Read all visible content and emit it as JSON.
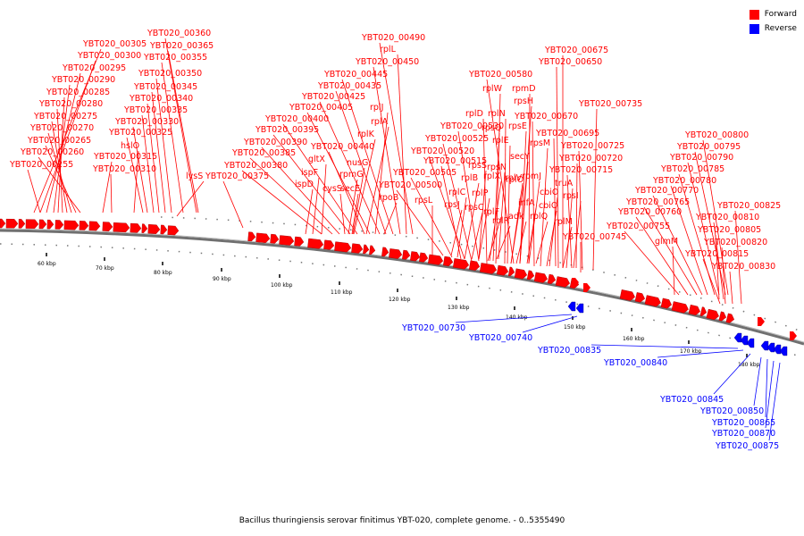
{
  "colors": {
    "forward": "#ff0000",
    "reverse": "#0000ff",
    "backbone": "#707070",
    "label": "#000000"
  },
  "legend": {
    "forward_label": "Forward",
    "reverse_label": "Reverse"
  },
  "caption": "Bacillus thuringiensis serovar finitimus YBT-020, complete genome. - 0..5355490",
  "axis_ticks": [
    "60 kbp",
    "70 kbp",
    "80 kbp",
    "90 kbp",
    "100 kbp",
    "110 kbp",
    "120 kbp",
    "130 kbp",
    "140 kbp",
    "150 kbp",
    "160 kbp",
    "170 kbp",
    "180 kbp"
  ],
  "forward_labels": [
    "YBT020_00360",
    "YBT020_00305",
    "YBT020_00365",
    "YBT020_00300",
    "YBT020_00355",
    "YBT020_00295",
    "YBT020_00350",
    "YBT020_00290",
    "YBT020_00345",
    "YBT020_00285",
    "YBT020_00340",
    "YBT020_00280",
    "YBT020_00335",
    "YBT020_00275",
    "YBT020_00330",
    "YBT020_00270",
    "YBT020_00325",
    "hslO",
    "YBT020_00265",
    "YBT020_00315",
    "YBT020_00260",
    "YBT020_00310",
    "YBT020_00255",
    "lysS",
    "YBT020_00375",
    "YBT020_00490",
    "rplL",
    "YBT020_00450",
    "YBT020_00445",
    "YBT020_00435",
    "YBT020_00425",
    "rplJ",
    "YBT020_00405",
    "rplA",
    "YBT020_00400",
    "YBT020_00395",
    "rplK",
    "YBT020_00390",
    "YBT020_00440",
    "YBT020_00385",
    "gltX",
    "nusG",
    "YBT020_00380",
    "rpmG",
    "ispF",
    "cysS",
    "secE",
    "ispD",
    "rpoB",
    "YBT020_00675",
    "YBT020_00650",
    "YBT020_00580",
    "rpmD",
    "rplW",
    "rpsH",
    "rplD",
    "rplN",
    "rplE",
    "YBT020_00670",
    "YBT020_00530",
    "YBT020_00525",
    "rpsQ",
    "YBT020_00735",
    "rpsM",
    "YBT020_00695",
    "secY",
    "YBT020_00520",
    "rpsS",
    "rpsN",
    "rplV",
    "YBT020_00515",
    "YBT020_00725",
    "rpmJ",
    "rplB",
    "rplX",
    "YBT020_00720",
    "YBT020_00505",
    "rplO",
    "YBT020_00715",
    "YBT020_00500",
    "rplC",
    "rpsE",
    "cbiO",
    "truA",
    "rpsL",
    "rpsJ",
    "rplP",
    "rpsC",
    "rplR",
    "infA",
    "rpsI",
    "rplF",
    "adk",
    "rplQ",
    "cbiO",
    "rplM",
    "YBT020_00745",
    "YBT020_00800",
    "YBT020_00795",
    "YBT020_00790",
    "YBT020_00785",
    "YBT020_00780",
    "YBT020_00770",
    "YBT020_00765",
    "YBT020_00760",
    "YBT020_00755",
    "glmM",
    "YBT020_00825",
    "YBT020_00810",
    "YBT020_00805",
    "YBT020_00820",
    "YBT020_00815",
    "YBT020_00830"
  ],
  "reverse_labels": [
    "YBT020_00730",
    "YBT020_00740",
    "YBT020_00835",
    "YBT020_00840",
    "YBT020_00845",
    "YBT020_00850",
    "YBT020_00865",
    "YBT020_00870",
    "YBT020_00875"
  ]
}
